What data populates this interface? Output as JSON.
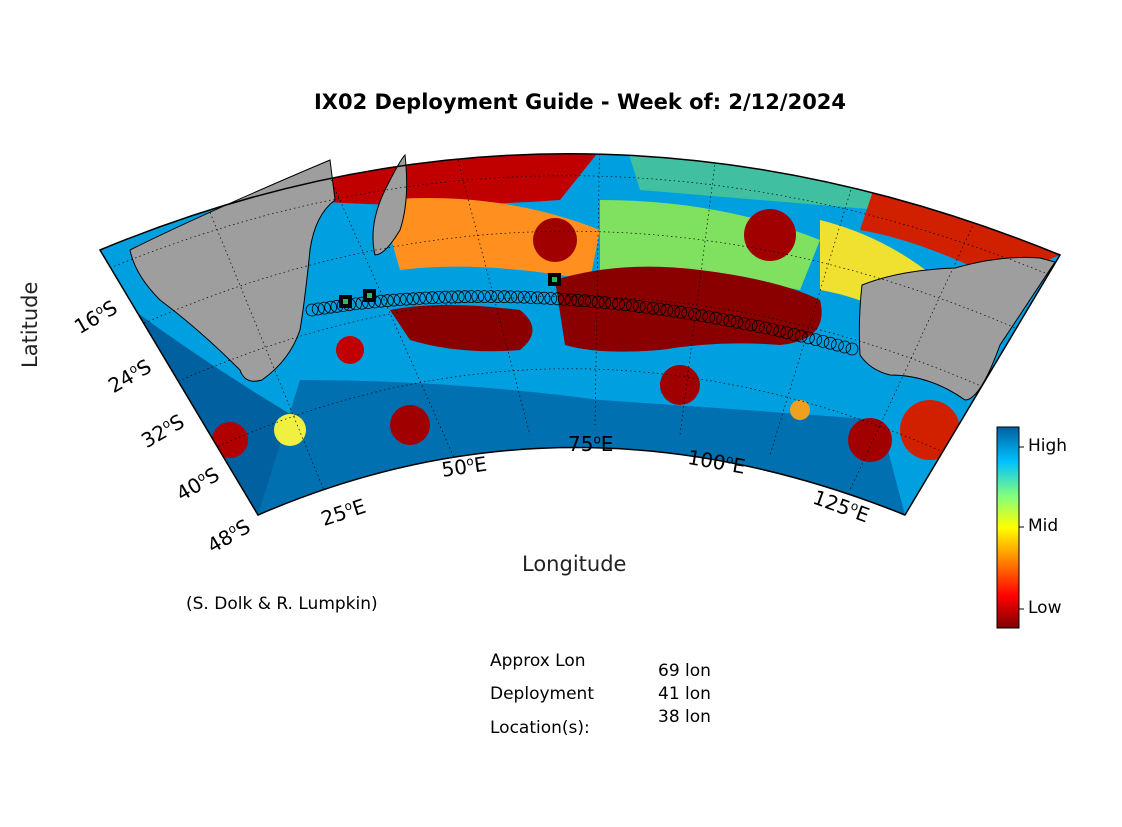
{
  "title": "IX02 Deployment Guide - Week of: 2/12/2024",
  "axes": {
    "xlabel": "Longitude",
    "ylabel": "Latitude",
    "lon_ticks": [
      "25",
      "50",
      "75",
      "100",
      "125"
    ],
    "lon_suffix": "E",
    "lat_ticks": [
      "16",
      "24",
      "32",
      "40",
      "48"
    ],
    "lat_suffix": "S",
    "degree_mark": "o"
  },
  "colorbar": {
    "high_label": "High",
    "mid_label": "Mid",
    "low_label": "Low",
    "colors": [
      "#7f0000",
      "#ff0000",
      "#ff8000",
      "#ffff00",
      "#80ff80",
      "#00c0ff",
      "#0060a0"
    ]
  },
  "credit": "(S. Dolk & R. Lumpkin)",
  "deployment_info": {
    "label_line1": "Approx Lon",
    "label_line2": "Deployment",
    "label_line3": "Location(s):",
    "values": [
      "69 lon",
      "41 lon",
      "38 lon"
    ],
    "deployment_lons": [
      69,
      41,
      38
    ]
  },
  "land_color": "#9e9e9e",
  "track_color": "#000000"
}
